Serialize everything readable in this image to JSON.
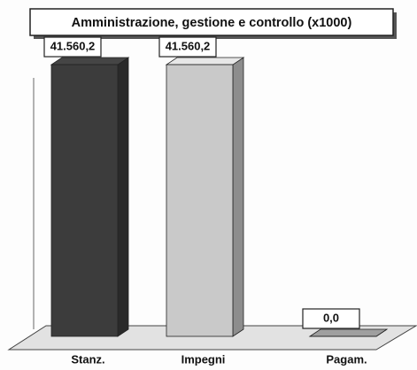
{
  "chart_data": {
    "type": "bar",
    "title": "Amministrazione, gestione e controllo (x1000)",
    "categories": [
      "Stanz.",
      "Impegni",
      "Pagam."
    ],
    "values": [
      41560.2,
      41560.2,
      0
    ],
    "value_labels": [
      "41.560,2",
      "41.560,2",
      "0,0"
    ],
    "colors": [
      "#3c3c3c",
      "#c9c9c9",
      "#8a8a8a"
    ],
    "ylim": [
      0,
      44000
    ]
  }
}
